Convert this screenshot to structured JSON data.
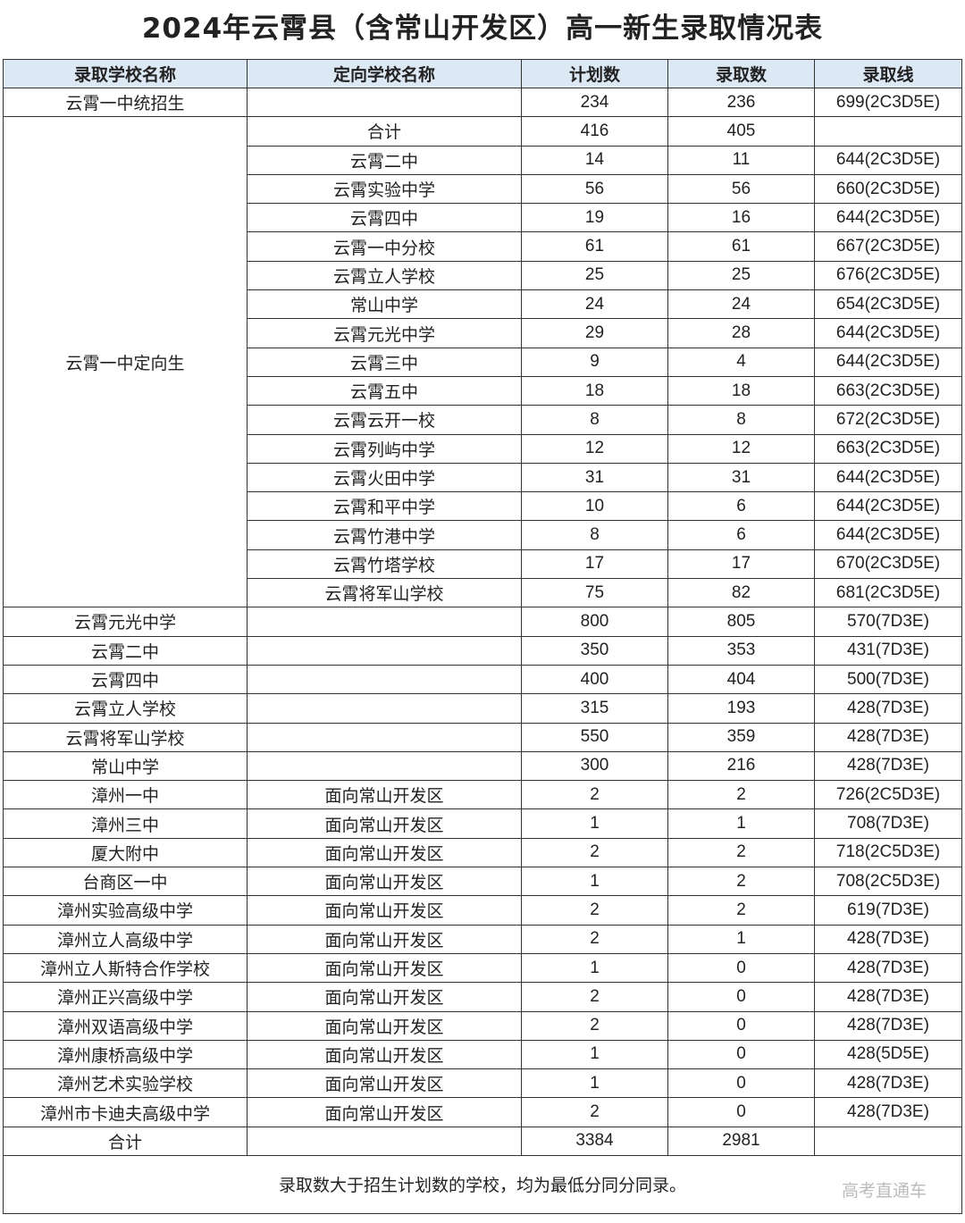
{
  "title": "2024年云霄县（含常山开发区）高一新生录取情况表",
  "headers": [
    "录取学校名称",
    "定向学校名称",
    "计划数",
    "录取数",
    "录取线"
  ],
  "row_top": {
    "school": "云霄一中统招生",
    "target": "",
    "plan": "234",
    "admit": "236",
    "line": "699(2C3D5E)"
  },
  "group": {
    "school": "云霄一中定向生",
    "rows": [
      {
        "target": "合计",
        "plan": "416",
        "admit": "405",
        "line": ""
      },
      {
        "target": "云霄二中",
        "plan": "14",
        "admit": "11",
        "line": "644(2C3D5E)"
      },
      {
        "target": "云霄实验中学",
        "plan": "56",
        "admit": "56",
        "line": "660(2C3D5E)"
      },
      {
        "target": "云霄四中",
        "plan": "19",
        "admit": "16",
        "line": "644(2C3D5E)"
      },
      {
        "target": "云霄一中分校",
        "plan": "61",
        "admit": "61",
        "line": "667(2C3D5E)"
      },
      {
        "target": "云霄立人学校",
        "plan": "25",
        "admit": "25",
        "line": "676(2C3D5E)"
      },
      {
        "target": "常山中学",
        "plan": "24",
        "admit": "24",
        "line": "654(2C3D5E)"
      },
      {
        "target": "云霄元光中学",
        "plan": "29",
        "admit": "28",
        "line": "644(2C3D5E)"
      },
      {
        "target": "云霄三中",
        "plan": "9",
        "admit": "4",
        "line": "644(2C3D5E)"
      },
      {
        "target": "云霄五中",
        "plan": "18",
        "admit": "18",
        "line": "663(2C3D5E)"
      },
      {
        "target": "云霄云开一校",
        "plan": "8",
        "admit": "8",
        "line": "672(2C3D5E)"
      },
      {
        "target": "云霄列屿中学",
        "plan": "12",
        "admit": "12",
        "line": "663(2C3D5E)"
      },
      {
        "target": "云霄火田中学",
        "plan": "31",
        "admit": "31",
        "line": "644(2C3D5E)"
      },
      {
        "target": "云霄和平中学",
        "plan": "10",
        "admit": "6",
        "line": "644(2C3D5E)"
      },
      {
        "target": "云霄竹港中学",
        "plan": "8",
        "admit": "6",
        "line": "644(2C3D5E)"
      },
      {
        "target": "云霄竹塔学校",
        "plan": "17",
        "admit": "17",
        "line": "670(2C3D5E)"
      },
      {
        "target": "云霄将军山学校",
        "plan": "75",
        "admit": "82",
        "line": "681(2C3D5E)"
      }
    ]
  },
  "rows": [
    {
      "school": "云霄元光中学",
      "target": "",
      "plan": "800",
      "admit": "805",
      "line": "570(7D3E)"
    },
    {
      "school": "云霄二中",
      "target": "",
      "plan": "350",
      "admit": "353",
      "line": "431(7D3E)"
    },
    {
      "school": "云霄四中",
      "target": "",
      "plan": "400",
      "admit": "404",
      "line": "500(7D3E)"
    },
    {
      "school": "云霄立人学校",
      "target": "",
      "plan": "315",
      "admit": "193",
      "line": "428(7D3E)"
    },
    {
      "school": "云霄将军山学校",
      "target": "",
      "plan": "550",
      "admit": "359",
      "line": "428(7D3E)"
    },
    {
      "school": "常山中学",
      "target": "",
      "plan": "300",
      "admit": "216",
      "line": "428(7D3E)"
    },
    {
      "school": "漳州一中",
      "target": "面向常山开发区",
      "plan": "2",
      "admit": "2",
      "line": "726(2C5D3E)"
    },
    {
      "school": "漳州三中",
      "target": "面向常山开发区",
      "plan": "1",
      "admit": "1",
      "line": "708(7D3E)"
    },
    {
      "school": "厦大附中",
      "target": "面向常山开发区",
      "plan": "2",
      "admit": "2",
      "line": "718(2C5D3E)"
    },
    {
      "school": "台商区一中",
      "target": "面向常山开发区",
      "plan": "1",
      "admit": "2",
      "line": "708(2C5D3E)"
    },
    {
      "school": "漳州实验高级中学",
      "target": "面向常山开发区",
      "plan": "2",
      "admit": "2",
      "line": "619(7D3E)"
    },
    {
      "school": "漳州立人高级中学",
      "target": "面向常山开发区",
      "plan": "2",
      "admit": "1",
      "line": "428(7D3E)"
    },
    {
      "school": "漳州立人斯特合作学校",
      "target": "面向常山开发区",
      "plan": "1",
      "admit": "0",
      "line": "428(7D3E)"
    },
    {
      "school": "漳州正兴高级中学",
      "target": "面向常山开发区",
      "plan": "2",
      "admit": "0",
      "line": "428(7D3E)"
    },
    {
      "school": "漳州双语高级中学",
      "target": "面向常山开发区",
      "plan": "2",
      "admit": "0",
      "line": "428(7D3E)"
    },
    {
      "school": "漳州康桥高级中学",
      "target": "面向常山开发区",
      "plan": "1",
      "admit": "0",
      "line": "428(5D5E)"
    },
    {
      "school": "漳州艺术实验学校",
      "target": "面向常山开发区",
      "plan": "1",
      "admit": "0",
      "line": "428(7D3E)"
    },
    {
      "school": "漳州市卡迪夫高级中学",
      "target": "面向常山开发区",
      "plan": "2",
      "admit": "0",
      "line": "428(7D3E)"
    },
    {
      "school": "合计",
      "target": "",
      "plan": "3384",
      "admit": "2981",
      "line": ""
    }
  ],
  "note": "录取数大于招生计划数的学校，均为最低分同分同录。",
  "watermark": "高考直通车"
}
